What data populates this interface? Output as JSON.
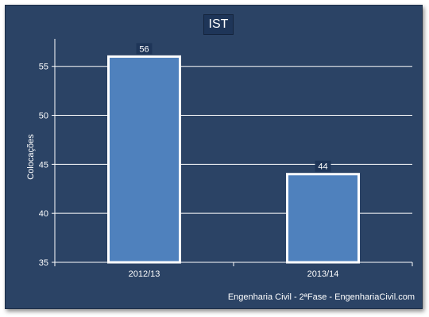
{
  "chart_data": {
    "type": "bar",
    "title": "IST",
    "ylabel": "Colocações",
    "xlabel": "",
    "categories": [
      "2012/13",
      "2013/14"
    ],
    "values": [
      56,
      44
    ],
    "ylim": [
      35,
      57
    ],
    "yticks": [
      35,
      40,
      45,
      50,
      55
    ],
    "grid": true,
    "bar_color": "#4f81bd",
    "background_color": "#2b4365"
  },
  "footer": {
    "credit": "Engenharia Civil - 2ªFase - EngenhariaCivil.com"
  }
}
